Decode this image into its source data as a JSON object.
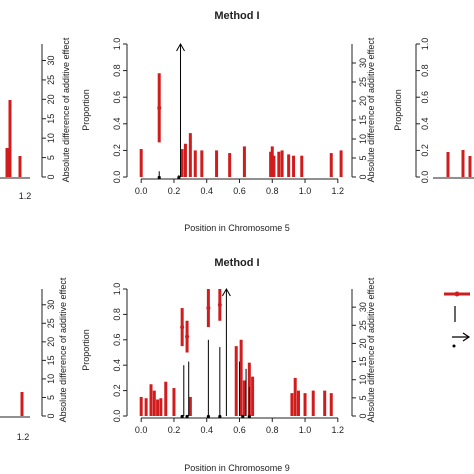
{
  "chart_data": [
    {
      "type": "bar",
      "title": "Method I",
      "xlabel": "Position in Chromosome 5",
      "ylabel_left": "Proportion",
      "ylabel_right": "Absolute difference of additive effect",
      "xlim": [
        -0.05,
        1.25
      ],
      "ylim_left": [
        0,
        1.0
      ],
      "ylim_right": [
        0,
        35
      ],
      "xticks": [
        "0.0",
        "0.2",
        "0.4",
        "0.6",
        "0.8",
        "1.0",
        "1.2"
      ],
      "yticks_left": [
        "0.0",
        "0.2",
        "0.4",
        "0.6",
        "0.8",
        "1.0"
      ],
      "yticks_right": [
        "0",
        "5",
        "10",
        "15",
        "20",
        "25",
        "30"
      ],
      "series": [
        {
          "values": [
            {
              "x": 0.0,
              "y": 0.21
            },
            {
              "x": 0.11,
              "y": 0.78,
              "lower": 0.26
            },
            {
              "x": 0.25,
              "y": 0.21
            },
            {
              "x": 0.27,
              "y": 0.25
            },
            {
              "x": 0.3,
              "y": 0.33
            },
            {
              "x": 0.33,
              "y": 0.2
            },
            {
              "x": 0.37,
              "y": 0.2
            },
            {
              "x": 0.46,
              "y": 0.2
            },
            {
              "x": 0.54,
              "y": 0.18
            },
            {
              "x": 0.63,
              "y": 0.23
            },
            {
              "x": 0.79,
              "y": 0.19
            },
            {
              "x": 0.8,
              "y": 0.23
            },
            {
              "x": 0.81,
              "y": 0.16
            },
            {
              "x": 0.84,
              "y": 0.19
            },
            {
              "x": 0.86,
              "y": 0.2
            },
            {
              "x": 0.9,
              "y": 0.17
            },
            {
              "x": 0.93,
              "y": 0.16
            },
            {
              "x": 0.98,
              "y": 0.16
            },
            {
              "x": 1.16,
              "y": 0.18
            },
            {
              "x": 1.22,
              "y": 0.2
            }
          ]
        },
        {
          "values": [
            {
              "x": 0.11,
              "y": 1.5
            },
            {
              "x": 0.23,
              "y": 0.5
            }
          ]
        }
      ],
      "arrows": [
        {
          "x": 0.24,
          "y": 1.0
        }
      ],
      "points": [
        0.11,
        0.23
      ]
    },
    {
      "type": "bar",
      "title": "Method I",
      "xlabel": "Position in Chromosome 9",
      "ylabel_left": "Proportion",
      "ylabel_right": "Absolute difference of additive effect",
      "xlim": [
        -0.05,
        1.25
      ],
      "ylim_left": [
        0,
        1.0
      ],
      "ylim_right": [
        0,
        35
      ],
      "xticks": [
        "0.0",
        "0.2",
        "0.4",
        "0.6",
        "0.8",
        "1.0",
        "1.2"
      ],
      "yticks_left": [
        "0.0",
        "0.2",
        "0.4",
        "0.6",
        "0.8",
        "1.0"
      ],
      "yticks_right": [
        "0",
        "5",
        "10",
        "15",
        "20",
        "25",
        "30"
      ],
      "series": [
        {
          "values": [
            {
              "x": 0.0,
              "y": 0.15
            },
            {
              "x": 0.03,
              "y": 0.14
            },
            {
              "x": 0.06,
              "y": 0.25
            },
            {
              "x": 0.08,
              "y": 0.2
            },
            {
              "x": 0.1,
              "y": 0.13
            },
            {
              "x": 0.12,
              "y": 0.14
            },
            {
              "x": 0.15,
              "y": 0.27
            },
            {
              "x": 0.2,
              "y": 0.22
            },
            {
              "x": 0.25,
              "y": 0.85,
              "lower": 0.55
            },
            {
              "x": 0.28,
              "y": 0.75,
              "lower": 0.5
            },
            {
              "x": 0.3,
              "y": 0.15
            },
            {
              "x": 0.41,
              "y": 1.0,
              "lower": 0.7
            },
            {
              "x": 0.48,
              "y": 1.0,
              "lower": 0.75
            },
            {
              "x": 0.58,
              "y": 0.55
            },
            {
              "x": 0.61,
              "y": 0.6
            },
            {
              "x": 0.63,
              "y": 0.28
            },
            {
              "x": 0.66,
              "y": 0.42
            },
            {
              "x": 0.68,
              "y": 0.31
            },
            {
              "x": 0.92,
              "y": 0.18
            },
            {
              "x": 0.94,
              "y": 0.3
            },
            {
              "x": 0.96,
              "y": 0.2
            },
            {
              "x": 1.0,
              "y": 0.18
            },
            {
              "x": 1.05,
              "y": 0.2
            },
            {
              "x": 1.12,
              "y": 0.2
            },
            {
              "x": 1.16,
              "y": 0.18
            }
          ]
        },
        {
          "values": [
            {
              "x": 0.26,
              "y": 14
            },
            {
              "x": 0.29,
              "y": 15
            },
            {
              "x": 0.41,
              "y": 21
            },
            {
              "x": 0.48,
              "y": 19
            },
            {
              "x": 0.6,
              "y": 15
            },
            {
              "x": 0.64,
              "y": 13
            },
            {
              "x": 0.66,
              "y": 8
            }
          ]
        }
      ],
      "arrows": [
        {
          "x": 0.52,
          "y": 1.0
        }
      ],
      "points": [
        0.25,
        0.28,
        0.41,
        0.48,
        0.62,
        0.66
      ]
    }
  ],
  "side_panels": {
    "left": {
      "xtick": "1.2",
      "yticks": [
        "0",
        "5",
        "10",
        "15",
        "20",
        "25",
        "30"
      ],
      "ylabel": "Absolute difference of additive effect"
    },
    "right": {
      "yticks": [
        "0.0",
        "0.2",
        "0.4",
        "0.6",
        "0.8",
        "1.0"
      ],
      "ylabel": "Proportion"
    }
  },
  "colors": {
    "bar": "#d01c1c",
    "line": "#000000"
  }
}
